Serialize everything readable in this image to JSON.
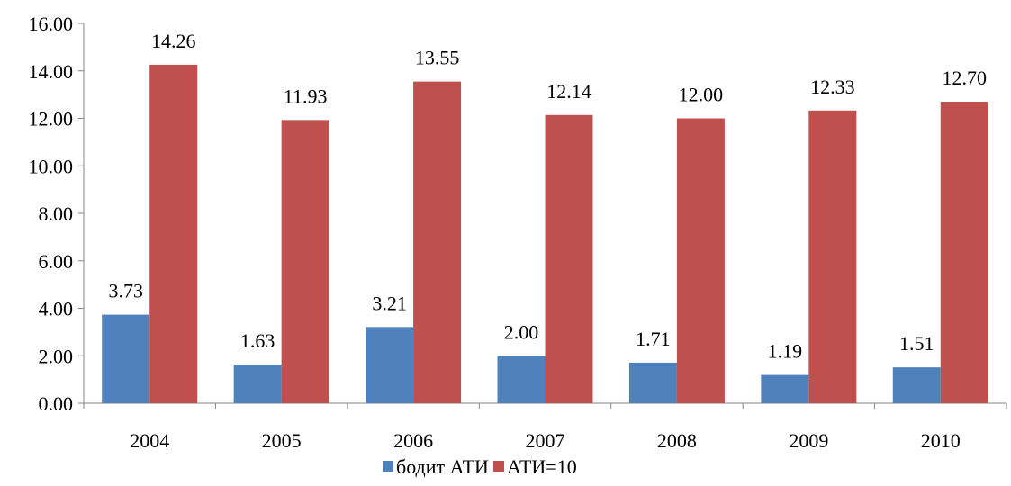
{
  "chart_data": {
    "type": "bar",
    "categories": [
      "2004",
      "2005",
      "2006",
      "2007",
      "2008",
      "2009",
      "2010"
    ],
    "series": [
      {
        "name": "бодит АТИ",
        "color": "#4F81BD",
        "values": [
          3.73,
          1.63,
          3.21,
          2.0,
          1.71,
          1.19,
          1.51
        ],
        "labels": [
          "3.73",
          "1.63",
          "3.21",
          "2.00",
          "1.71",
          "1.19",
          "1.51"
        ]
      },
      {
        "name": "АТИ=10",
        "color": "#C0504D",
        "values": [
          14.26,
          11.93,
          13.55,
          12.14,
          12.0,
          12.33,
          12.7
        ],
        "labels": [
          "14.26",
          "11.93",
          "13.55",
          "12.14",
          "12.00",
          "12.33",
          "12.70"
        ]
      }
    ],
    "ylim": [
      0,
      16
    ],
    "yticks": [
      "0.00",
      "2.00",
      "4.00",
      "6.00",
      "8.00",
      "10.00",
      "12.00",
      "14.00",
      "16.00"
    ],
    "grid": false,
    "legend_position": "bottom"
  }
}
